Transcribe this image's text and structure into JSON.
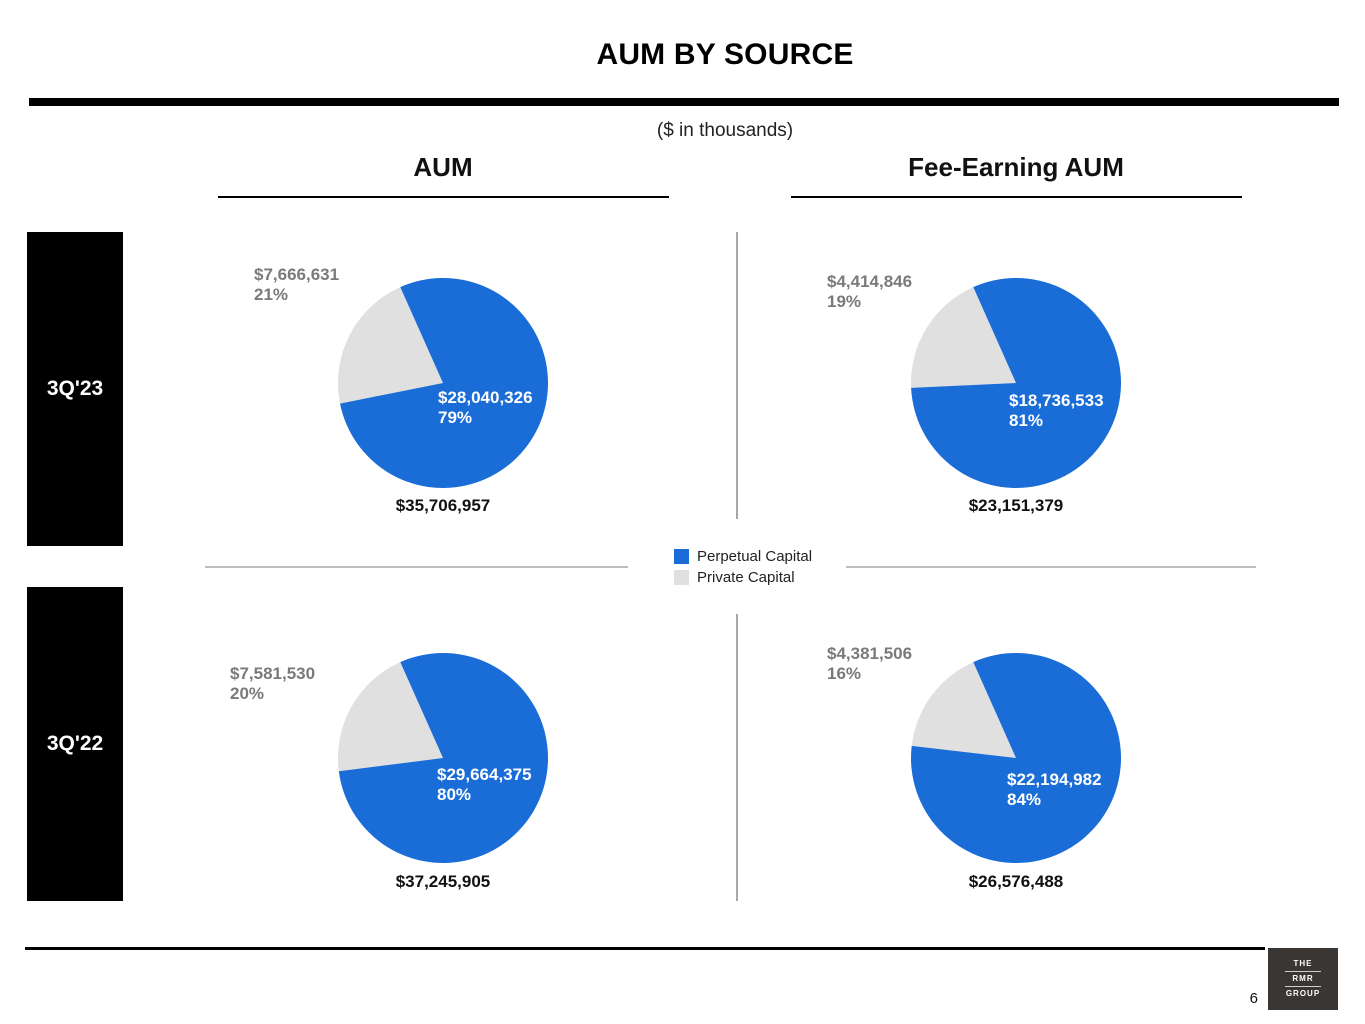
{
  "page": {
    "title": "AUM BY SOURCE",
    "subtitle": "($ in thousands)",
    "page_number": "6"
  },
  "columns": {
    "left": "AUM",
    "right": "Fee-Earning AUM"
  },
  "rows": {
    "top": "3Q'23",
    "bottom": "3Q'22"
  },
  "legend": [
    {
      "label": "Perpetual Capital",
      "color": "#1a6dd6"
    },
    {
      "label": "Private Capital",
      "color": "#e0e0e0"
    }
  ],
  "logo": {
    "line1": "THE",
    "line2": "RMR",
    "line3": "GROUP"
  },
  "chart_data": [
    {
      "type": "pie",
      "row": "3Q'23",
      "column": "AUM",
      "total": "$35,706,957",
      "slices": [
        {
          "name": "Perpetual Capital",
          "value": 28040326,
          "value_label": "$28,040,326",
          "pct": "79%",
          "color": "#1a6dd6"
        },
        {
          "name": "Private Capital",
          "value": 7666631,
          "value_label": "$7,666,631",
          "pct": "21%",
          "color": "#e0e0e0"
        }
      ]
    },
    {
      "type": "pie",
      "row": "3Q'23",
      "column": "Fee-Earning AUM",
      "total": "$23,151,379",
      "slices": [
        {
          "name": "Perpetual Capital",
          "value": 18736533,
          "value_label": "$18,736,533",
          "pct": "81%",
          "color": "#1a6dd6"
        },
        {
          "name": "Private Capital",
          "value": 4414846,
          "value_label": "$4,414,846",
          "pct": "19%",
          "color": "#e0e0e0"
        }
      ]
    },
    {
      "type": "pie",
      "row": "3Q'22",
      "column": "AUM",
      "total": "$37,245,905",
      "slices": [
        {
          "name": "Perpetual Capital",
          "value": 29664375,
          "value_label": "$29,664,375",
          "pct": "80%",
          "color": "#1a6dd6"
        },
        {
          "name": "Private Capital",
          "value": 7581530,
          "value_label": "$7,581,530",
          "pct": "20%",
          "color": "#e0e0e0"
        }
      ]
    },
    {
      "type": "pie",
      "row": "3Q'22",
      "column": "Fee-Earning AUM",
      "total": "$26,576,488",
      "slices": [
        {
          "name": "Perpetual Capital",
          "value": 22194982,
          "value_label": "$22,194,982",
          "pct": "84%",
          "color": "#1a6dd6"
        },
        {
          "name": "Private Capital",
          "value": 4381506,
          "value_label": "$4,381,506",
          "pct": "16%",
          "color": "#e0e0e0"
        }
      ]
    }
  ]
}
